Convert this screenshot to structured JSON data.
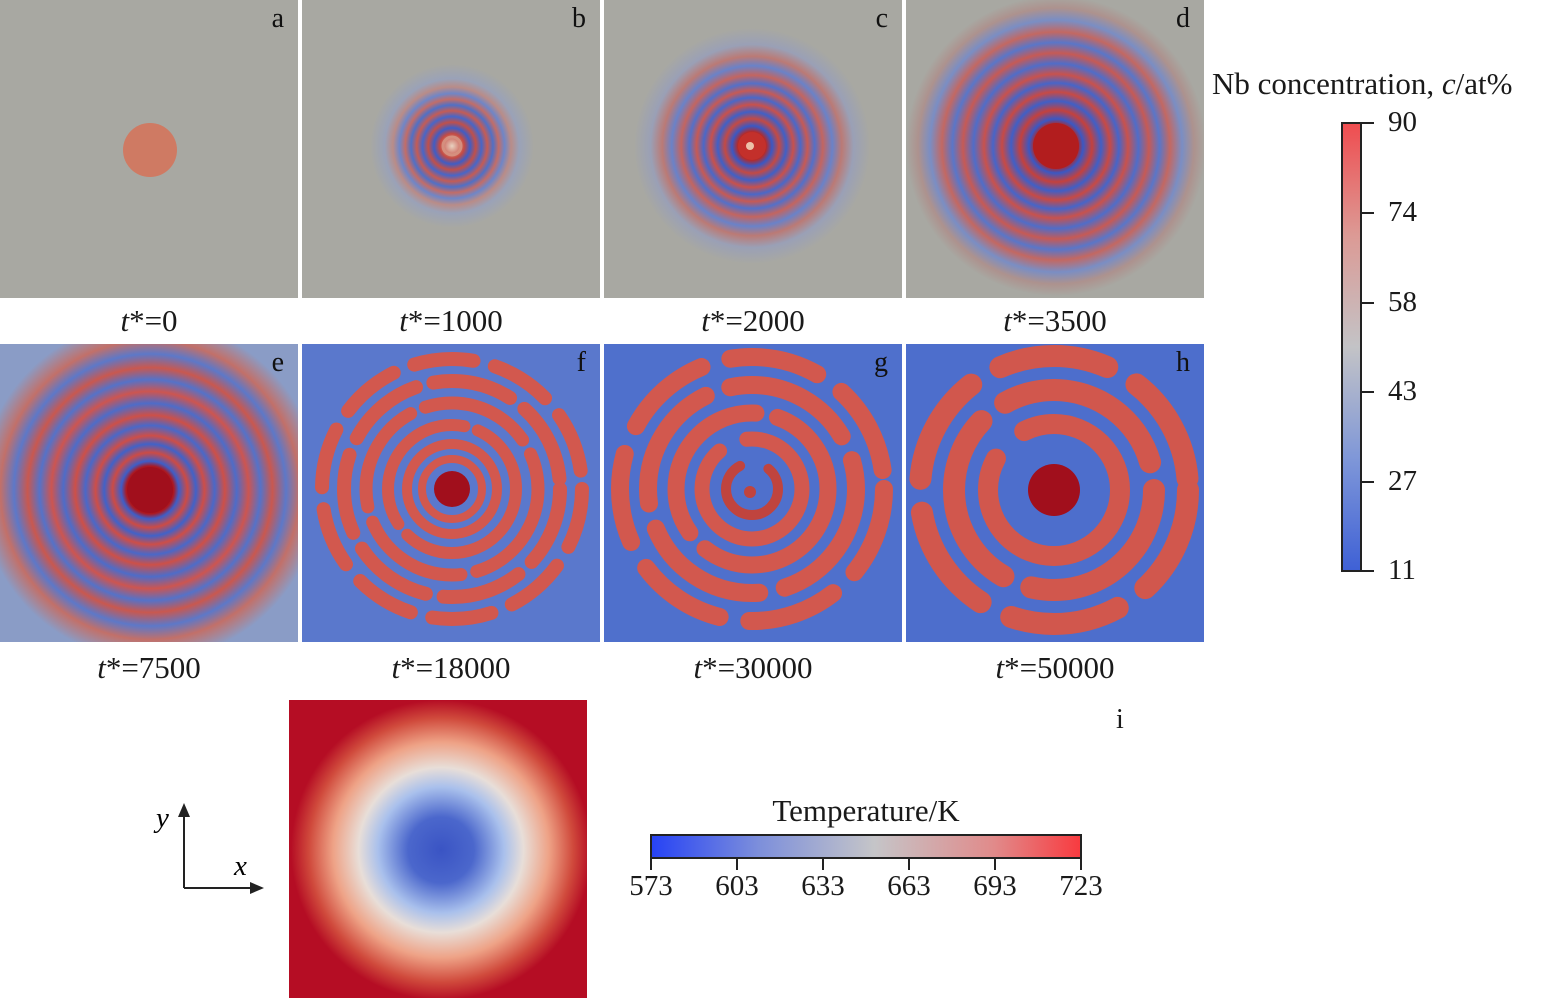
{
  "panels": [
    {
      "id": "a",
      "label": "a",
      "time_prefix": "t",
      "time_suffix": "*=0"
    },
    {
      "id": "b",
      "label": "b",
      "time_prefix": "t",
      "time_suffix": "*=1000"
    },
    {
      "id": "c",
      "label": "c",
      "time_prefix": "t",
      "time_suffix": "*=2000"
    },
    {
      "id": "d",
      "label": "d",
      "time_prefix": "t",
      "time_suffix": "*=3500"
    },
    {
      "id": "e",
      "label": "e",
      "time_prefix": "t",
      "time_suffix": "*=7500"
    },
    {
      "id": "f",
      "label": "f",
      "time_prefix": "t",
      "time_suffix": "*=18000"
    },
    {
      "id": "g",
      "label": "g",
      "time_prefix": "t",
      "time_suffix": "*=30000"
    },
    {
      "id": "h",
      "label": "h",
      "time_prefix": "t",
      "time_suffix": "*=50000"
    }
  ],
  "concentration_colorbar": {
    "title_prefix": "Nb concentration, ",
    "title_var": "c",
    "title_suffix": "/at%",
    "ticks": [
      "90",
      "74",
      "58",
      "43",
      "27",
      "11"
    ],
    "min": 11,
    "max": 90
  },
  "panel_i": {
    "label": "i"
  },
  "temperature_colorbar": {
    "title": "Temperature/K",
    "ticks": [
      "573",
      "603",
      "633",
      "663",
      "693",
      "723"
    ],
    "min": 573,
    "max": 723
  },
  "axes": {
    "x": "x",
    "y": "y"
  },
  "colors": {
    "background_gray": "#a8a8a2",
    "nb_rich": "#b01a25",
    "nb_poor": "#3e62c8",
    "temperature_hot": "#b50d24",
    "temperature_cold": "#3a54c4"
  }
}
